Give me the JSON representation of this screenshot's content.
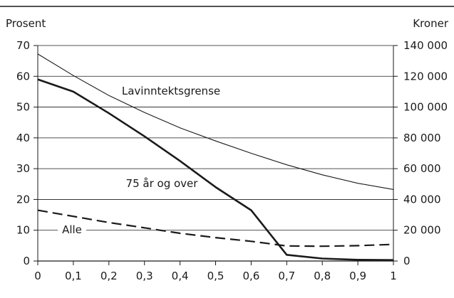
{
  "chart_data": {
    "type": "line",
    "title": "",
    "left_axis": {
      "label": "Prosent",
      "ylim": [
        0,
        70
      ],
      "ticks": [
        0,
        10,
        20,
        30,
        40,
        50,
        60,
        70
      ],
      "tick_labels": [
        "0",
        "10",
        "20",
        "30",
        "40",
        "50",
        "60",
        "70"
      ]
    },
    "right_axis": {
      "label": "Kroner",
      "ylim": [
        0,
        140000
      ],
      "ticks": [
        0,
        20000,
        40000,
        60000,
        80000,
        100000,
        120000,
        140000
      ],
      "tick_labels": [
        "0",
        "20 000",
        "40 000",
        "60 000",
        "80 000",
        "100 000",
        "120 000",
        "140 000"
      ]
    },
    "x_axis": {
      "label": "",
      "xlim": [
        0,
        1
      ],
      "ticks": [
        0,
        0.1,
        0.2,
        0.3,
        0.4,
        0.5,
        0.6,
        0.7,
        0.8,
        0.9,
        1
      ],
      "tick_labels": [
        "0",
        "0,1",
        "0,2",
        "0,3",
        "0,4",
        "0,5",
        "0,6",
        "0,7",
        "0,8",
        "0,9",
        "1"
      ]
    },
    "grid": "horizontal",
    "series": [
      {
        "name": "Lavinntektsgrense",
        "axis": "right",
        "style": "thin",
        "color": "#1a1a1a",
        "x": [
          0,
          0.1,
          0.2,
          0.3,
          0.4,
          0.5,
          0.6,
          0.7,
          0.8,
          0.9,
          1
        ],
        "y": [
          134500,
          120500,
          107500,
          96500,
          86500,
          78000,
          70000,
          62500,
          56000,
          50500,
          46500
        ]
      },
      {
        "name": "75 år og over",
        "axis": "left",
        "style": "thick",
        "color": "#1a1a1a",
        "x": [
          0,
          0.1,
          0.2,
          0.3,
          0.4,
          0.5,
          0.6,
          0.7,
          0.8,
          0.9,
          1
        ],
        "y": [
          59,
          55,
          48,
          40.5,
          32.5,
          24,
          16.5,
          2,
          0.8,
          0.4,
          0.3
        ]
      },
      {
        "name": "Alle",
        "axis": "left",
        "style": "dashed",
        "color": "#1a1a1a",
        "x": [
          0,
          0.1,
          0.2,
          0.3,
          0.4,
          0.5,
          0.6,
          0.7,
          0.8,
          0.9,
          1
        ],
        "y": [
          16.5,
          14.5,
          12.5,
          10.8,
          9,
          7.6,
          6.4,
          4.9,
          4.8,
          5,
          5.4
        ]
      }
    ],
    "annotations": [
      {
        "text": "Lavinntektsgrense",
        "series": "Lavinntektsgrense"
      },
      {
        "text": "75 år og over",
        "series": "75 år og over"
      },
      {
        "text": "Alle",
        "series": "Alle"
      }
    ]
  }
}
